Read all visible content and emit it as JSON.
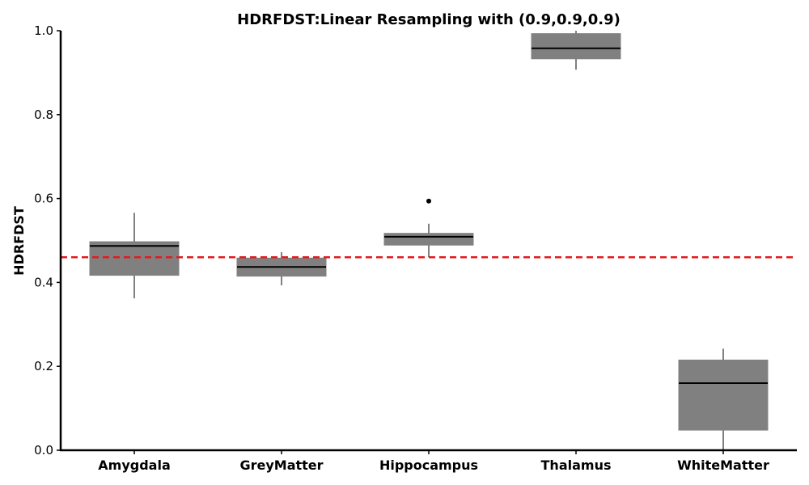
{
  "chart_data": {
    "type": "boxplot",
    "title": "HDRFDST:Linear Resampling with (0.9,0.9,0.9)",
    "xlabel": "",
    "ylabel": "HDRFDST",
    "ylim": [
      0.0,
      1.0
    ],
    "yticks": [
      "0.0",
      "0.2",
      "0.4",
      "0.6",
      "0.8",
      "1.0"
    ],
    "categories": [
      "Amygdala",
      "GreyMatter",
      "Hippocampus",
      "Thalamus",
      "WhiteMatter"
    ],
    "boxes": [
      {
        "category": "Amygdala",
        "whisker_low": 0.362,
        "q1": 0.417,
        "median": 0.487,
        "q3": 0.497,
        "whisker_high": 0.566,
        "outliers": []
      },
      {
        "category": "GreyMatter",
        "whisker_low": 0.393,
        "q1": 0.415,
        "median": 0.437,
        "q3": 0.458,
        "whisker_high": 0.472,
        "outliers": []
      },
      {
        "category": "Hippocampus",
        "whisker_low": 0.46,
        "q1": 0.489,
        "median": 0.509,
        "q3": 0.517,
        "whisker_high": 0.54,
        "outliers": [
          0.594
        ]
      },
      {
        "category": "Thalamus",
        "whisker_low": 0.907,
        "q1": 0.933,
        "median": 0.958,
        "q3": 0.993,
        "whisker_high": 1.0,
        "outliers": []
      },
      {
        "category": "WhiteMatter",
        "whisker_low": 0.0,
        "q1": 0.048,
        "median": 0.16,
        "q3": 0.215,
        "whisker_high": 0.242,
        "outliers": []
      }
    ],
    "reference_line": {
      "value": 0.46,
      "style": "dashed",
      "color": "#e31a1c"
    },
    "box_color": "#808080",
    "median_color": "#000000",
    "grid": false,
    "legend": "none"
  }
}
